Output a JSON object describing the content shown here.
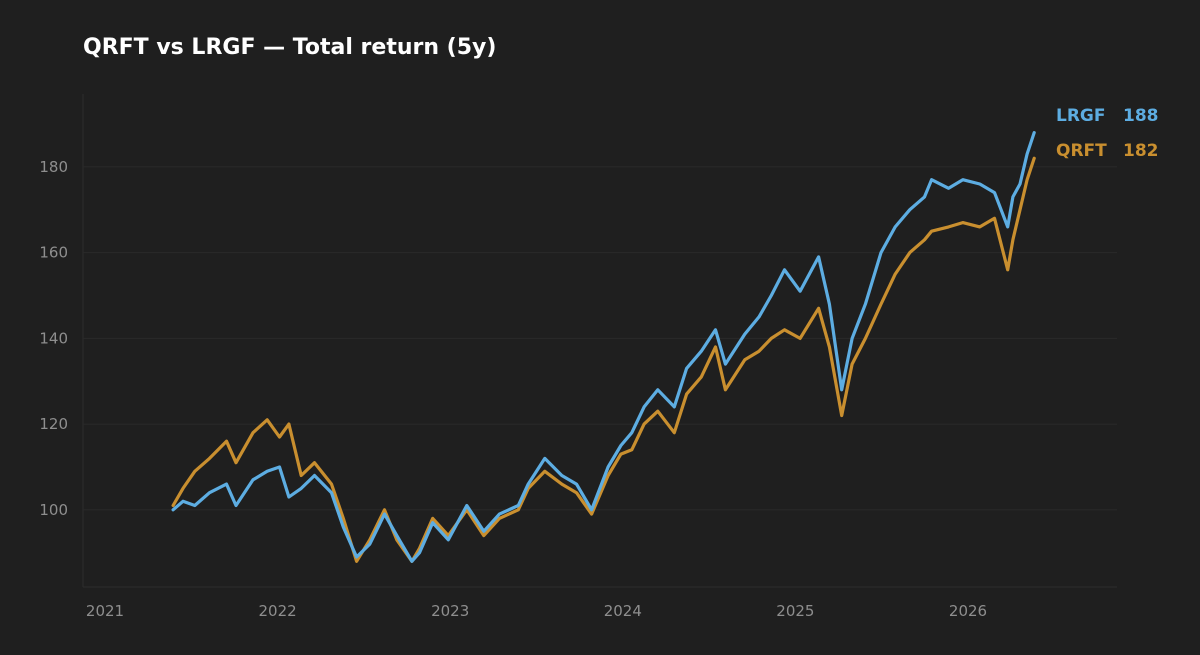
{
  "chart_data": {
    "type": "line",
    "title": "QRFT vs LRGF — Total return (5y)",
    "xlabel": "",
    "ylabel": "",
    "x_ticks": [
      "2021",
      "2022",
      "2023",
      "2024",
      "2025",
      "2026"
    ],
    "y_ticks": [
      100,
      120,
      140,
      160,
      180
    ],
    "xlim": [
      "2021-01-01",
      "2026-12-31"
    ],
    "ylim": [
      82,
      197
    ],
    "grid": "horizontal",
    "legend": "end-of-line labels, right",
    "series": [
      {
        "name": "LRGF",
        "color": "#5dade2",
        "end_value": "188",
        "points": [
          [
            "2021-05-25",
            100
          ],
          [
            "2021-06-15",
            102
          ],
          [
            "2021-07-10",
            101
          ],
          [
            "2021-08-10",
            104
          ],
          [
            "2021-09-15",
            106
          ],
          [
            "2021-10-05",
            101
          ],
          [
            "2021-11-10",
            107
          ],
          [
            "2021-12-10",
            109
          ],
          [
            "2022-01-05",
            110
          ],
          [
            "2022-01-25",
            103
          ],
          [
            "2022-02-20",
            105
          ],
          [
            "2022-03-20",
            108
          ],
          [
            "2022-04-25",
            104
          ],
          [
            "2022-05-20",
            96
          ],
          [
            "2022-06-17",
            89
          ],
          [
            "2022-07-15",
            92
          ],
          [
            "2022-08-15",
            99
          ],
          [
            "2022-09-10",
            94
          ],
          [
            "2022-10-12",
            88
          ],
          [
            "2022-10-28",
            90
          ],
          [
            "2022-11-25",
            97
          ],
          [
            "2022-12-28",
            93
          ],
          [
            "2023-02-05",
            101
          ],
          [
            "2023-03-13",
            95
          ],
          [
            "2023-04-15",
            99
          ],
          [
            "2023-05-25",
            101
          ],
          [
            "2023-06-15",
            106
          ],
          [
            "2023-07-20",
            112
          ],
          [
            "2023-08-25",
            108
          ],
          [
            "2023-09-25",
            106
          ],
          [
            "2023-10-27",
            100
          ],
          [
            "2023-12-01",
            110
          ],
          [
            "2023-12-28",
            115
          ],
          [
            "2024-01-20",
            118
          ],
          [
            "2024-02-15",
            124
          ],
          [
            "2024-03-15",
            128
          ],
          [
            "2024-04-19",
            124
          ],
          [
            "2024-05-15",
            133
          ],
          [
            "2024-06-15",
            137
          ],
          [
            "2024-07-15",
            142
          ],
          [
            "2024-08-05",
            134
          ],
          [
            "2024-09-15",
            141
          ],
          [
            "2024-10-15",
            145
          ],
          [
            "2024-11-10",
            150
          ],
          [
            "2024-12-08",
            156
          ],
          [
            "2025-01-10",
            151
          ],
          [
            "2025-02-18",
            159
          ],
          [
            "2025-03-13",
            148
          ],
          [
            "2025-04-08",
            128
          ],
          [
            "2025-04-30",
            140
          ],
          [
            "2025-05-28",
            148
          ],
          [
            "2025-06-30",
            160
          ],
          [
            "2025-07-30",
            166
          ],
          [
            "2025-08-30",
            170
          ],
          [
            "2025-09-30",
            173
          ],
          [
            "2025-10-15",
            177
          ],
          [
            "2025-11-20",
            175
          ],
          [
            "2025-12-20",
            177
          ],
          [
            "2026-01-25",
            176
          ],
          [
            "2026-02-25",
            174
          ],
          [
            "2026-03-25",
            166
          ],
          [
            "2026-04-05",
            173
          ],
          [
            "2026-04-20",
            176
          ],
          [
            "2026-05-05",
            183
          ],
          [
            "2026-05-20",
            188
          ]
        ]
      },
      {
        "name": "QRFT",
        "color": "#c98f2f",
        "end_value": "182",
        "points": [
          [
            "2021-05-25",
            101
          ],
          [
            "2021-06-15",
            105
          ],
          [
            "2021-07-10",
            109
          ],
          [
            "2021-08-10",
            112
          ],
          [
            "2021-09-15",
            116
          ],
          [
            "2021-10-05",
            111
          ],
          [
            "2021-11-10",
            118
          ],
          [
            "2021-12-10",
            121
          ],
          [
            "2022-01-05",
            117
          ],
          [
            "2022-01-25",
            120
          ],
          [
            "2022-02-20",
            108
          ],
          [
            "2022-03-20",
            111
          ],
          [
            "2022-04-25",
            106
          ],
          [
            "2022-05-20",
            98
          ],
          [
            "2022-06-17",
            88
          ],
          [
            "2022-07-15",
            93
          ],
          [
            "2022-08-15",
            100
          ],
          [
            "2022-09-10",
            93
          ],
          [
            "2022-10-12",
            88
          ],
          [
            "2022-10-28",
            91
          ],
          [
            "2022-11-25",
            98
          ],
          [
            "2022-12-28",
            94
          ],
          [
            "2023-02-05",
            100
          ],
          [
            "2023-03-13",
            94
          ],
          [
            "2023-04-15",
            98
          ],
          [
            "2023-05-25",
            100
          ],
          [
            "2023-06-15",
            105
          ],
          [
            "2023-07-20",
            109
          ],
          [
            "2023-08-25",
            106
          ],
          [
            "2023-09-25",
            104
          ],
          [
            "2023-10-27",
            99
          ],
          [
            "2023-12-01",
            108
          ],
          [
            "2023-12-28",
            113
          ],
          [
            "2024-01-20",
            114
          ],
          [
            "2024-02-15",
            120
          ],
          [
            "2024-03-15",
            123
          ],
          [
            "2024-04-19",
            118
          ],
          [
            "2024-05-15",
            127
          ],
          [
            "2024-06-15",
            131
          ],
          [
            "2024-07-15",
            138
          ],
          [
            "2024-08-05",
            128
          ],
          [
            "2024-09-15",
            135
          ],
          [
            "2024-10-15",
            137
          ],
          [
            "2024-11-10",
            140
          ],
          [
            "2024-12-08",
            142
          ],
          [
            "2025-01-10",
            140
          ],
          [
            "2025-02-18",
            147
          ],
          [
            "2025-03-13",
            138
          ],
          [
            "2025-04-08",
            122
          ],
          [
            "2025-04-30",
            134
          ],
          [
            "2025-05-28",
            140
          ],
          [
            "2025-06-30",
            148
          ],
          [
            "2025-07-30",
            155
          ],
          [
            "2025-08-30",
            160
          ],
          [
            "2025-09-30",
            163
          ],
          [
            "2025-10-15",
            165
          ],
          [
            "2025-11-20",
            166
          ],
          [
            "2025-12-20",
            167
          ],
          [
            "2026-01-25",
            166
          ],
          [
            "2026-02-25",
            168
          ],
          [
            "2026-03-25",
            156
          ],
          [
            "2026-04-05",
            163
          ],
          [
            "2026-04-20",
            170
          ],
          [
            "2026-05-05",
            177
          ],
          [
            "2026-05-20",
            182
          ]
        ]
      }
    ]
  }
}
